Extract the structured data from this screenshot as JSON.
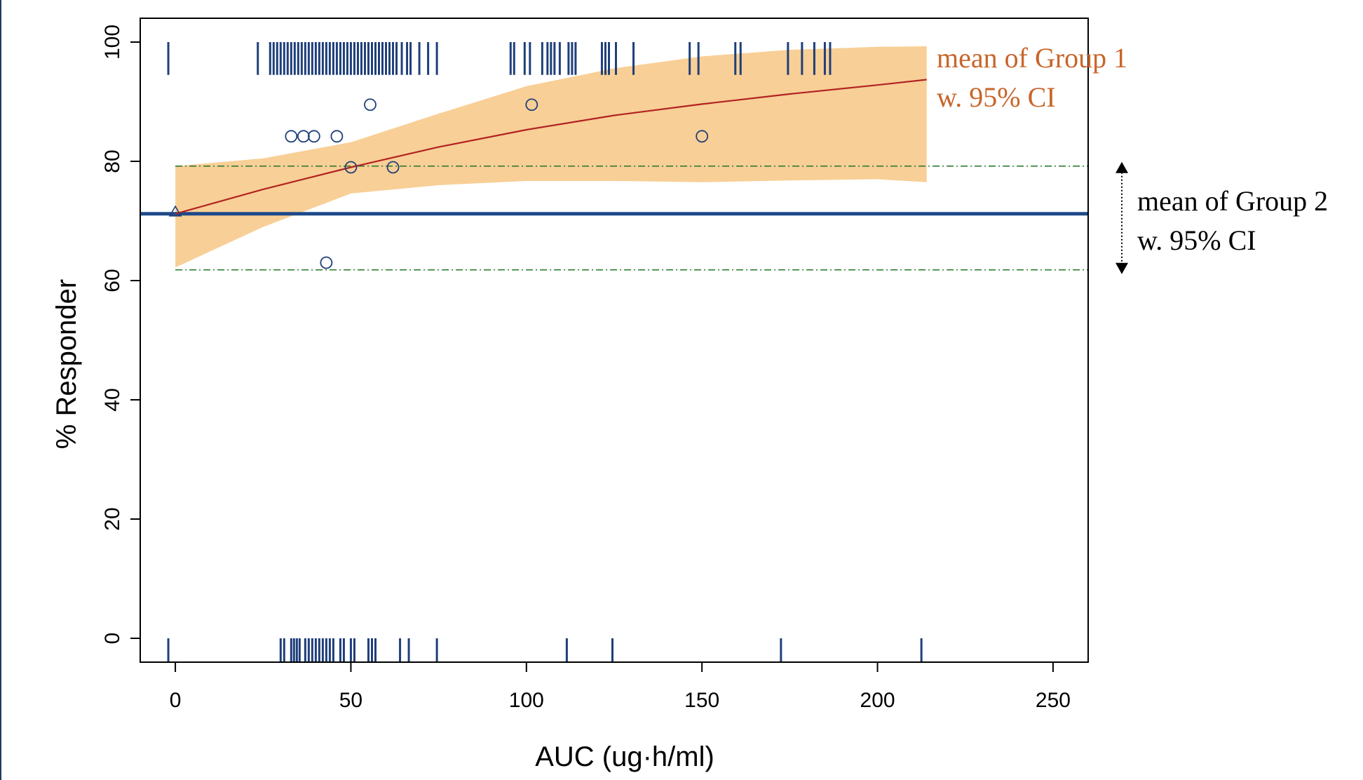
{
  "chart_data": {
    "type": "scatter",
    "title": "",
    "xlabel": "AUC (ug·h/ml)",
    "ylabel": "% Responder",
    "xlim": [
      -10,
      260
    ],
    "ylim": [
      -4,
      104
    ],
    "x_ticks": [
      0,
      50,
      100,
      150,
      200,
      250
    ],
    "y_ticks": [
      0,
      20,
      40,
      60,
      80,
      100
    ],
    "x_tick_labels": [
      "0",
      "50",
      "100",
      "150",
      "200",
      "250"
    ],
    "y_tick_labels": [
      "0",
      "20",
      "40",
      "60",
      "80",
      "100"
    ],
    "grid": false,
    "annotations": {
      "group1": [
        "mean of Group 1",
        "w. 95% CI"
      ],
      "group2": [
        "mean of Group 2",
        "w. 95% CI"
      ]
    },
    "colors": {
      "rug": "#1f3f7a",
      "points": "#1f3f7a",
      "fit_line": "#b22222",
      "ci_band": "#f8cf96",
      "group2_mean": "#1f4a8a",
      "group2_ci": "#2e7d32",
      "group1_label": "#c8652a",
      "axis": "#000000"
    },
    "group1_fit": {
      "x": [
        0,
        25,
        50,
        75,
        100,
        125,
        150,
        175,
        200,
        214
      ],
      "y": [
        71.2,
        75.3,
        79.0,
        82.4,
        85.3,
        87.7,
        89.6,
        91.3,
        92.8,
        93.7
      ],
      "lower": [
        62.2,
        69.0,
        74.6,
        76.0,
        76.7,
        76.7,
        76.5,
        76.8,
        77.0,
        76.5
      ],
      "upper": [
        79.2,
        80.5,
        83.2,
        88.0,
        92.6,
        95.6,
        97.6,
        98.7,
        99.2,
        99.3
      ]
    },
    "group2": {
      "mean": 71.2,
      "ci_lower": 61.8,
      "ci_upper": 79.2
    },
    "points": {
      "x": [
        0,
        33,
        36.5,
        39.5,
        46,
        50,
        55.5,
        62,
        43,
        101.5,
        150
      ],
      "y": [
        71.5,
        84.2,
        84.2,
        84.2,
        84.2,
        79,
        89.5,
        79,
        63,
        89.5,
        84.2
      ],
      "shape": [
        "triangle",
        "circle",
        "circle",
        "circle",
        "circle",
        "circle",
        "circle",
        "circle",
        "circle",
        "circle",
        "circle"
      ]
    },
    "rug_top": [
      -2,
      23.5,
      27,
      28,
      29,
      30,
      31,
      32,
      33,
      34,
      35,
      36,
      37,
      38,
      39,
      40,
      41,
      42,
      43,
      44,
      45,
      46,
      47,
      48,
      49,
      50,
      51,
      52,
      53,
      54,
      55,
      56,
      57,
      58,
      59,
      60,
      61,
      62,
      63,
      64.5,
      66,
      67,
      69.5,
      72,
      74.5,
      95.5,
      96.5,
      99.5,
      101,
      104.5,
      106,
      107,
      108,
      109.5,
      112,
      113,
      114,
      121.5,
      122.5,
      123.5,
      125.5,
      130.5,
      146.5,
      149,
      159.5,
      161,
      174.5,
      178.5,
      182,
      185,
      186.5
    ],
    "rug_bottom": [
      -2,
      30,
      31,
      33,
      33.8,
      34.6,
      35.4,
      37,
      38,
      39,
      40,
      41,
      42,
      43,
      44,
      45,
      47,
      48,
      50,
      51,
      55,
      56,
      57,
      64,
      66.5,
      74.5,
      111.5,
      124.5,
      172.5,
      212.5
    ]
  }
}
